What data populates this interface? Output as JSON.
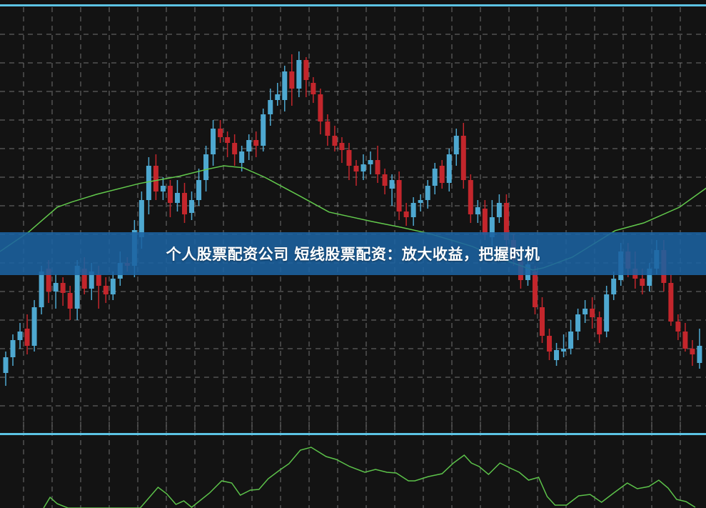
{
  "banner": {
    "title": "个人股票配资公司 短线股票配资：放大收益，把握时机"
  },
  "colors": {
    "background": "#131313",
    "panel_border": "#5cc3e4",
    "grid": "#8a8a8a",
    "up_candle": "#4ea8d0",
    "down_candle": "#c3262c",
    "moving_average": "#62c94c",
    "oscillator": "#5cc24a",
    "banner": "#1b62a0"
  },
  "chart_data": [
    {
      "type": "candlestick",
      "grid": true,
      "note_fields": [
        "open",
        "high",
        "low",
        "close"
      ],
      "candles": [
        [
          19.5,
          27,
          15,
          25
        ],
        [
          25,
          33,
          22,
          31
        ],
        [
          31,
          37,
          28,
          34
        ],
        [
          35,
          40,
          26,
          29
        ],
        [
          29,
          45,
          27,
          42.5
        ],
        [
          42.5,
          57,
          40,
          55
        ],
        [
          56,
          59,
          44,
          48
        ],
        [
          48,
          54,
          42,
          51
        ],
        [
          51,
          53,
          43,
          47.5
        ],
        [
          47.5,
          50,
          38,
          42
        ],
        [
          42,
          59,
          38,
          57
        ],
        [
          56,
          60,
          47,
          49
        ],
        [
          49,
          58,
          45,
          55
        ],
        [
          54,
          57,
          42,
          50
        ],
        [
          50,
          53,
          44,
          47
        ],
        [
          47,
          55,
          45,
          52.5
        ],
        [
          52.5,
          62,
          50,
          58
        ],
        [
          58,
          60,
          55,
          57
        ],
        [
          57,
          73,
          53,
          69.5
        ],
        [
          67,
          83,
          63,
          80
        ],
        [
          80,
          95,
          75,
          92
        ],
        [
          92,
          96,
          80,
          83
        ],
        [
          83,
          88,
          80,
          85
        ],
        [
          85,
          87,
          74,
          79
        ],
        [
          79,
          87,
          76,
          82.5
        ],
        [
          82.5,
          86,
          72,
          75
        ],
        [
          75.5,
          83,
          73,
          80
        ],
        [
          80,
          91,
          78,
          87
        ],
        [
          87,
          99,
          83,
          96
        ],
        [
          96,
          108,
          92,
          105
        ],
        [
          105,
          108,
          100,
          102
        ],
        [
          102,
          104,
          95,
          100
        ],
        [
          100,
          103,
          92,
          96
        ],
        [
          93,
          99,
          90,
          97
        ],
        [
          97,
          103,
          94,
          101
        ],
        [
          101,
          104,
          95,
          99
        ],
        [
          99,
          112,
          97,
          110
        ],
        [
          110,
          119,
          106,
          115
        ],
        [
          115,
          121,
          113,
          117
        ],
        [
          115,
          127,
          111,
          125
        ],
        [
          125,
          131,
          113,
          119
        ],
        [
          119,
          132,
          116,
          129
        ],
        [
          129,
          130,
          116,
          122
        ],
        [
          121,
          123,
          114,
          117
        ],
        [
          117,
          119,
          103,
          107.5
        ],
        [
          107.5,
          110,
          99,
          102.5
        ],
        [
          102.5,
          106,
          97,
          99
        ],
        [
          100,
          102,
          93,
          97.5
        ],
        [
          97.5,
          100,
          87,
          92
        ],
        [
          92,
          94,
          85,
          90
        ],
        [
          90,
          96,
          87,
          92.5
        ],
        [
          92.5,
          97,
          89,
          94
        ],
        [
          94,
          99,
          86,
          89
        ],
        [
          89,
          91,
          82,
          85
        ],
        [
          84,
          89,
          78,
          87
        ],
        [
          87,
          90,
          73,
          76
        ],
        [
          76,
          79,
          71,
          74
        ],
        [
          74,
          81,
          71,
          79
        ],
        [
          79,
          82,
          76,
          80
        ],
        [
          80,
          87,
          77,
          85
        ],
        [
          85,
          93,
          82,
          91
        ],
        [
          92,
          94,
          84,
          86
        ],
        [
          86,
          98,
          83,
          96
        ],
        [
          96,
          105,
          92,
          102.5
        ],
        [
          102.5,
          107,
          84,
          87
        ],
        [
          87,
          89,
          72,
          75
        ],
        [
          75,
          80,
          72,
          77.5
        ],
        [
          77,
          80,
          66,
          68
        ],
        [
          67,
          80,
          64,
          74
        ],
        [
          74,
          82,
          72,
          79
        ],
        [
          79,
          82,
          63,
          66
        ],
        [
          66,
          68,
          57,
          59
        ],
        [
          59,
          61,
          49,
          52
        ],
        [
          52,
          61,
          50,
          57.5
        ],
        [
          55,
          57,
          40,
          42.5
        ],
        [
          42.5,
          46,
          30,
          32.5
        ],
        [
          32.5,
          35,
          24,
          27
        ],
        [
          24,
          30,
          22,
          27.5
        ],
        [
          27,
          33,
          25,
          28
        ],
        [
          28,
          38,
          26,
          34
        ],
        [
          34,
          42,
          31,
          40
        ],
        [
          40,
          45,
          37,
          42
        ],
        [
          42,
          46,
          35,
          39
        ],
        [
          39,
          41,
          30,
          33
        ],
        [
          34,
          50,
          32,
          47
        ],
        [
          47,
          55,
          45,
          52.5
        ],
        [
          52,
          65,
          50,
          62
        ],
        [
          62,
          65,
          53,
          56
        ],
        [
          56,
          62,
          49,
          52.5
        ],
        [
          52.5,
          56,
          47,
          50
        ],
        [
          50,
          58,
          48,
          56
        ],
        [
          56,
          66,
          54,
          62.5
        ],
        [
          62.5,
          66,
          48,
          51
        ],
        [
          51,
          54,
          36,
          37.5
        ],
        [
          37.5,
          40,
          31,
          34
        ],
        [
          34,
          37,
          27,
          28
        ],
        [
          28,
          31,
          22,
          26
        ],
        [
          23,
          35,
          21,
          29
        ]
      ],
      "moving_average": [
        [
          -0.8,
          62
        ],
        [
          3.2,
          68.8
        ],
        [
          7.2,
          77.5
        ],
        [
          9.2,
          79.3
        ],
        [
          12.7,
          82
        ],
        [
          18.7,
          85.8
        ],
        [
          24.2,
          88.3
        ],
        [
          28.2,
          90.8
        ],
        [
          30.5,
          92
        ],
        [
          33.2,
          91.3
        ],
        [
          36.2,
          88
        ],
        [
          41.2,
          81.3
        ],
        [
          45.2,
          75.8
        ],
        [
          51.2,
          72.5
        ],
        [
          55.2,
          70.5
        ],
        [
          59.2,
          68.3
        ],
        [
          65.2,
          63.8
        ],
        [
          69.2,
          59.5
        ],
        [
          73.7,
          55.5
        ],
        [
          75.2,
          56.3
        ],
        [
          79.2,
          60
        ],
        [
          85.2,
          69.3
        ],
        [
          89.2,
          72
        ],
        [
          94.2,
          77.5
        ],
        [
          98.1,
          84.5
        ]
      ]
    },
    {
      "type": "line",
      "grid": true,
      "values": [
        [
          5.3,
          0
        ],
        [
          6.2,
          15
        ],
        [
          7.2,
          6
        ],
        [
          8.7,
          0
        ],
        [
          18.8,
          0
        ],
        [
          21.3,
          29
        ],
        [
          22.5,
          20
        ],
        [
          23.8,
          5
        ],
        [
          24.9,
          10
        ],
        [
          26,
          1
        ],
        [
          28.5,
          21
        ],
        [
          30.2,
          38
        ],
        [
          31.6,
          35
        ],
        [
          32.8,
          18
        ],
        [
          34.2,
          25
        ],
        [
          35.4,
          26
        ],
        [
          36.7,
          41
        ],
        [
          38.3,
          53
        ],
        [
          39.6,
          62
        ],
        [
          41.2,
          81
        ],
        [
          42.7,
          85
        ],
        [
          44.8,
          72
        ],
        [
          46.2,
          68
        ],
        [
          48.1,
          58
        ],
        [
          50.2,
          50
        ],
        [
          51.7,
          54
        ],
        [
          53.3,
          50
        ],
        [
          54.6,
          49
        ],
        [
          56.3,
          38
        ],
        [
          57.2,
          38
        ],
        [
          59.1,
          44
        ],
        [
          61,
          48
        ],
        [
          62.6,
          63
        ],
        [
          64.1,
          74
        ],
        [
          65.1,
          63
        ],
        [
          66.2,
          58
        ],
        [
          67.5,
          47
        ],
        [
          69.1,
          63
        ],
        [
          70.5,
          56
        ],
        [
          71.8,
          50
        ],
        [
          73.1,
          39
        ],
        [
          74.5,
          43
        ],
        [
          75.7,
          16
        ],
        [
          76.8,
          4
        ],
        [
          78.4,
          4
        ],
        [
          80.1,
          17
        ],
        [
          81.7,
          19
        ],
        [
          83.3,
          8
        ],
        [
          85,
          21
        ],
        [
          86.9,
          35
        ],
        [
          88.3,
          27
        ],
        [
          89.9,
          30
        ],
        [
          91.3,
          39
        ],
        [
          92.6,
          28
        ],
        [
          93.8,
          12
        ],
        [
          95.1,
          9
        ],
        [
          96.4,
          1
        ]
      ]
    }
  ]
}
